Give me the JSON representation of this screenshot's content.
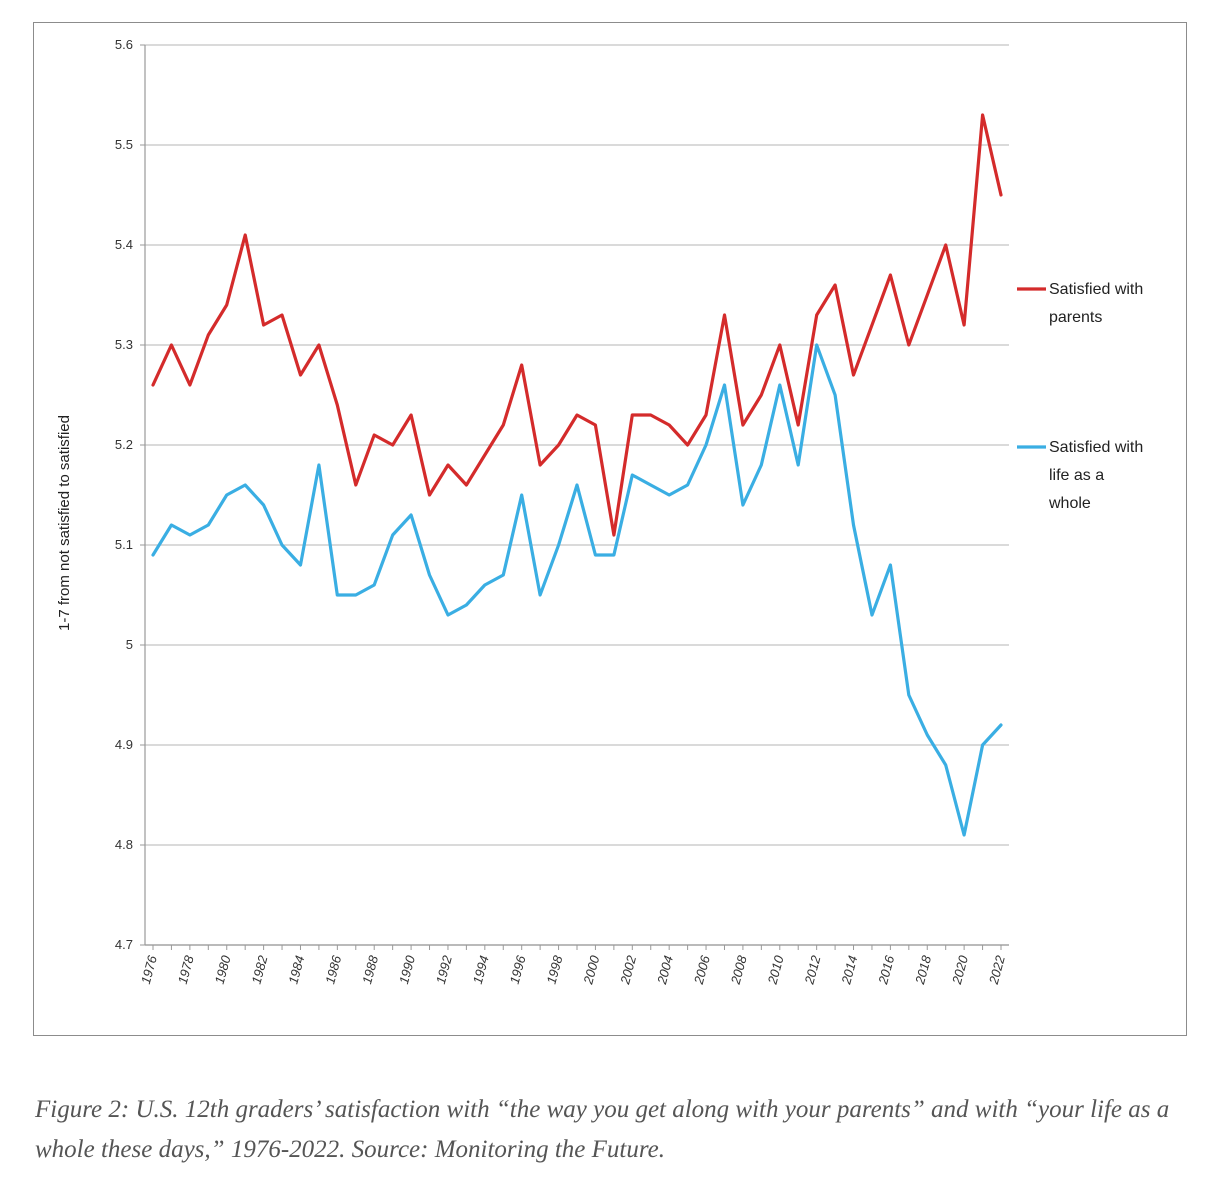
{
  "chart_data": {
    "type": "line",
    "title": "",
    "ylabel": "1-7 from not satisfied to satisfied",
    "xlabel": "",
    "ylim": [
      4.7,
      5.6
    ],
    "y_ticks": [
      "4.7",
      "4.8",
      "4.9",
      "5",
      "5.1",
      "5.2",
      "5.3",
      "5.4",
      "5.5",
      "5.6"
    ],
    "y_tick_values": [
      4.7,
      4.8,
      4.9,
      5.0,
      5.1,
      5.2,
      5.3,
      5.4,
      5.5,
      5.6
    ],
    "x_tick_labels": [
      "1976",
      "1978",
      "1980",
      "1982",
      "1984",
      "1986",
      "1988",
      "1990",
      "1992",
      "1994",
      "1996",
      "1998",
      "2000",
      "2002",
      "2004",
      "2006",
      "2008",
      "2010",
      "2012",
      "2014",
      "2016",
      "2018",
      "2020",
      "2022"
    ],
    "grid": "horizontal",
    "legend_position": "right",
    "x": [
      1976,
      1977,
      1978,
      1979,
      1980,
      1981,
      1982,
      1983,
      1984,
      1985,
      1986,
      1987,
      1988,
      1989,
      1990,
      1991,
      1992,
      1993,
      1994,
      1995,
      1996,
      1997,
      1998,
      1999,
      2000,
      2001,
      2002,
      2003,
      2004,
      2005,
      2006,
      2007,
      2008,
      2009,
      2010,
      2011,
      2012,
      2013,
      2014,
      2015,
      2016,
      2017,
      2018,
      2019,
      2020,
      2021,
      2022
    ],
    "series": [
      {
        "name": "Satisfied with parents",
        "legend_lines": [
          "Satisfied with",
          "parents"
        ],
        "color": "#d42b2b",
        "values": [
          5.26,
          5.3,
          5.26,
          5.31,
          5.34,
          5.41,
          5.32,
          5.33,
          5.27,
          5.3,
          5.24,
          5.16,
          5.21,
          5.2,
          5.23,
          5.15,
          5.18,
          5.16,
          5.19,
          5.22,
          5.28,
          5.18,
          5.2,
          5.23,
          5.22,
          5.11,
          5.23,
          5.23,
          5.22,
          5.2,
          5.23,
          5.33,
          5.22,
          5.25,
          5.3,
          5.22,
          5.33,
          5.36,
          5.27,
          5.32,
          5.37,
          5.3,
          5.35,
          5.4,
          5.32,
          5.53,
          5.45
        ]
      },
      {
        "name": "Satisfied with life as a whole",
        "legend_lines": [
          "Satisfied with",
          "life as a",
          "whole"
        ],
        "color": "#3aaee3",
        "values": [
          5.09,
          5.12,
          5.11,
          5.12,
          5.15,
          5.16,
          5.14,
          5.1,
          5.08,
          5.18,
          5.05,
          5.05,
          5.06,
          5.11,
          5.13,
          5.07,
          5.03,
          5.04,
          5.06,
          5.07,
          5.15,
          5.05,
          5.1,
          5.16,
          5.09,
          5.09,
          5.17,
          5.16,
          5.15,
          5.16,
          5.2,
          5.26,
          5.14,
          5.18,
          5.26,
          5.18,
          5.3,
          5.25,
          5.12,
          5.03,
          5.08,
          4.95,
          4.91,
          4.88,
          4.81,
          4.9,
          4.92
        ]
      }
    ]
  },
  "caption": "Figure 2: U.S. 12th graders’ satisfaction with “the way you get along with your parents” and with “your life as a whole these days,” 1976-2022. Source: Monitoring the Future."
}
